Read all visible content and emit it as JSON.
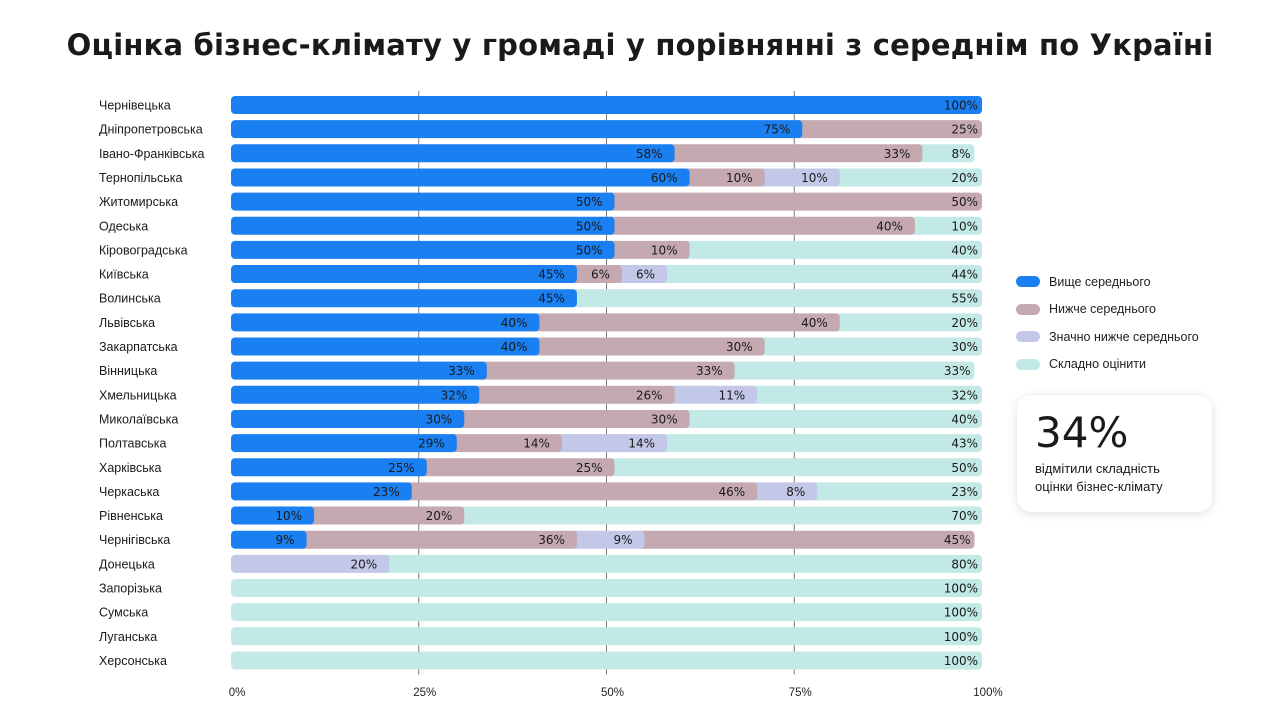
{
  "title": "Оцінка бізнес-клімату у громаді у порівнянні з середнім по Україні",
  "legend": {
    "items": [
      {
        "label": "Вище середнього",
        "color": "#1a7ff0"
      },
      {
        "label": "Нижче середнього",
        "color": "#c4a9b0"
      },
      {
        "label": "Значно нижче середнього",
        "color": "#c4c8e8"
      },
      {
        "label": "Складно оцінити",
        "color": "#c2e9e6"
      }
    ]
  },
  "callout": {
    "value": "34%",
    "text_line1": "відмітили складність",
    "text_line2": "оцінки бізнес-клімату"
  },
  "chart_data": {
    "type": "bar",
    "orientation": "horizontal",
    "stacked": true,
    "title": "Оцінка бізнес-клімату у громаді у порівнянні з середнім по Україні",
    "xlim": [
      0,
      100
    ],
    "x_ticks": [
      "0%",
      "25%",
      "50%",
      "75%",
      "100%"
    ],
    "grid": true,
    "legend_position": "right",
    "categories": [
      "Чернівецька",
      "Дніпропетровська",
      "Івано-Франківська",
      "Тернопільська",
      "Житомирська",
      "Одеська",
      "Кіровоградська",
      "Київська",
      "Волинська",
      "Львівська",
      "Закарпатська",
      "Вінницька",
      "Хмельницька",
      "Миколаївська",
      "Полтавська",
      "Харківська",
      "Черкаська",
      "Рівненська",
      "Чернігівська",
      "Донецька",
      "Запорізька",
      "Сумська",
      "Луганська",
      "Херсонська"
    ],
    "series": [
      {
        "name": "Вище середнього",
        "color": "#1a7ff0",
        "label_color": "#1a1a1a",
        "values": [
          100,
          75,
          58,
          60,
          50,
          50,
          50,
          45,
          45,
          40,
          40,
          33,
          32,
          30,
          29,
          25,
          23,
          10,
          9,
          0,
          0,
          0,
          0,
          0
        ]
      },
      {
        "name": "Нижче середнього",
        "color": "#c4a9b0",
        "label_color": "#1a1a1a",
        "values": [
          0,
          25,
          33,
          10,
          50,
          40,
          10,
          6,
          0,
          40,
          30,
          33,
          26,
          30,
          14,
          25,
          46,
          20,
          36,
          0,
          0,
          0,
          0,
          0
        ]
      },
      {
        "name": "Значно нижче середнього",
        "color": "#c4c8e8",
        "label_color": "#1a1a1a",
        "values": [
          0,
          0,
          0,
          10,
          0,
          0,
          0,
          6,
          0,
          0,
          0,
          0,
          11,
          0,
          14,
          0,
          8,
          0,
          9,
          20,
          0,
          0,
          0,
          0
        ]
      },
      {
        "name": "Складно оцінити",
        "color": "#c2e9e6",
        "label_color": "#1a1a1a",
        "values": [
          0,
          0,
          8,
          20,
          0,
          10,
          40,
          44,
          55,
          20,
          30,
          33,
          32,
          40,
          43,
          50,
          23,
          70,
          45,
          80,
          100,
          100,
          100,
          100
        ]
      }
    ],
    "last_segment_color_override": {
      "Чернігівська": "#c4a9b0"
    }
  }
}
